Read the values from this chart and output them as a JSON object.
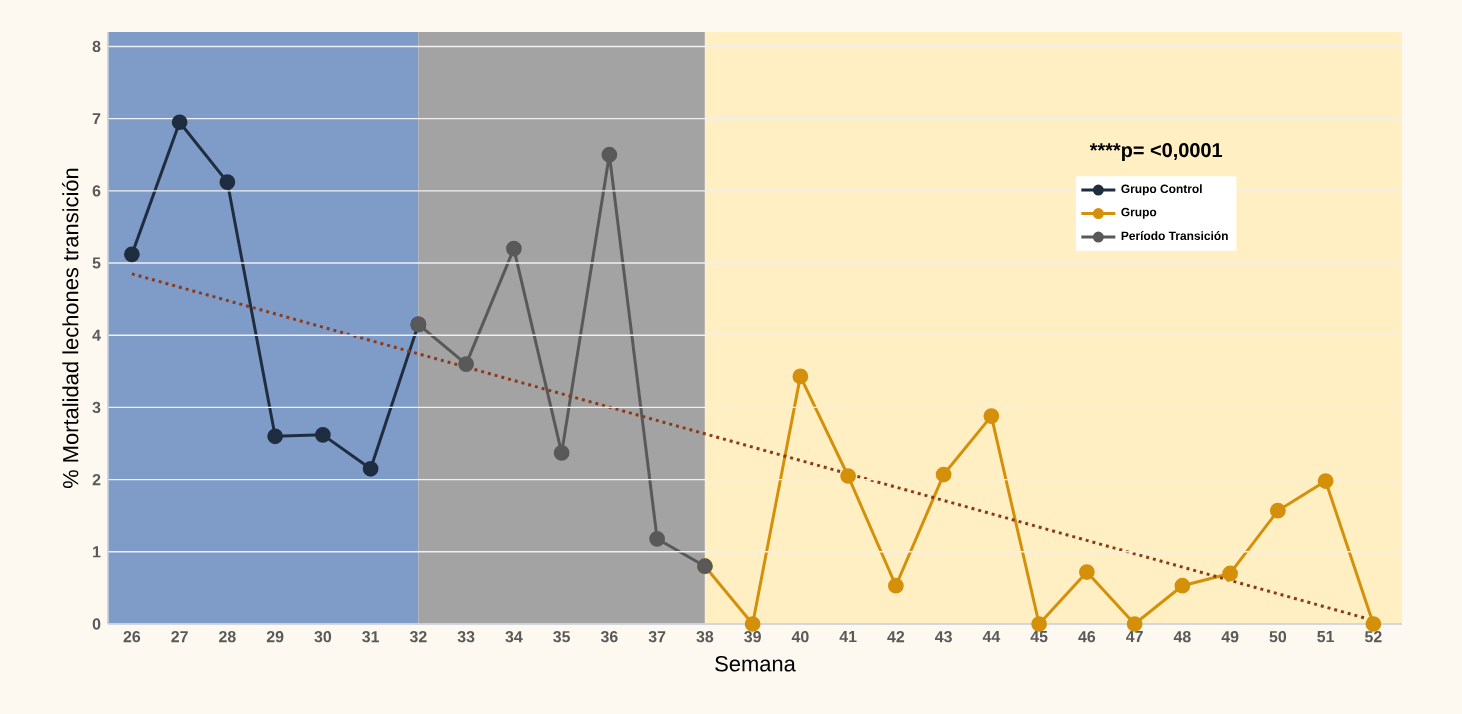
{
  "chart_data": {
    "type": "line",
    "xlabel": "Semana",
    "ylabel": "% Mortalidad lechones transición",
    "annotations": [
      "****p= <0,0001"
    ],
    "series": [
      {
        "name": "Grupo Control",
        "color": "#1f2d40",
        "x": [
          26,
          27,
          28,
          29,
          30,
          31,
          32
        ],
        "values": [
          5.12,
          6.95,
          6.12,
          2.6,
          2.62,
          2.15,
          4.15
        ]
      },
      {
        "name": "Grupo",
        "color": "#d4900a",
        "x": [
          38,
          39,
          40,
          41,
          42,
          43,
          44,
          45,
          46,
          47,
          48,
          49,
          50,
          51,
          52
        ],
        "values": [
          0.8,
          0,
          3.43,
          2.05,
          0.53,
          2.07,
          2.88,
          0,
          0.72,
          0,
          0.53,
          0.7,
          1.57,
          1.98,
          0
        ]
      },
      {
        "name": "Período  Transición",
        "color": "#595959",
        "x": [
          32,
          33,
          34,
          35,
          36,
          37,
          38
        ],
        "values": [
          4.15,
          3.6,
          5.2,
          2.37,
          6.5,
          1.18,
          0.8
        ]
      },
      {
        "type": "line",
        "color": "#8b3a1a",
        "line_style": "dotted",
        "marker": "none",
        "x": [
          26,
          52
        ],
        "values": [
          4.85,
          0.05
        ]
      }
    ],
    "bands": [
      {
        "axis": "x",
        "from": 25.5,
        "to": 32,
        "color": "#7f9cc8"
      },
      {
        "axis": "x",
        "from": 32,
        "to": 38,
        "color": "#a3a3a3"
      },
      {
        "axis": "x",
        "from": 38,
        "to": 52.6,
        "color": "#ffefc2"
      }
    ],
    "xlim": [
      25.5,
      52.6
    ],
    "ylim": [
      0,
      8.2
    ],
    "xticks": [
      26,
      27,
      28,
      29,
      30,
      31,
      32,
      33,
      34,
      35,
      36,
      37,
      38,
      39,
      40,
      41,
      42,
      43,
      44,
      45,
      46,
      47,
      48,
      49,
      50,
      51,
      52
    ],
    "yticks": [
      0,
      1,
      2,
      3,
      4,
      5,
      6,
      7,
      8
    ],
    "grid": "y",
    "marker": "circle",
    "line_style": "solid",
    "legend": "top right"
  }
}
